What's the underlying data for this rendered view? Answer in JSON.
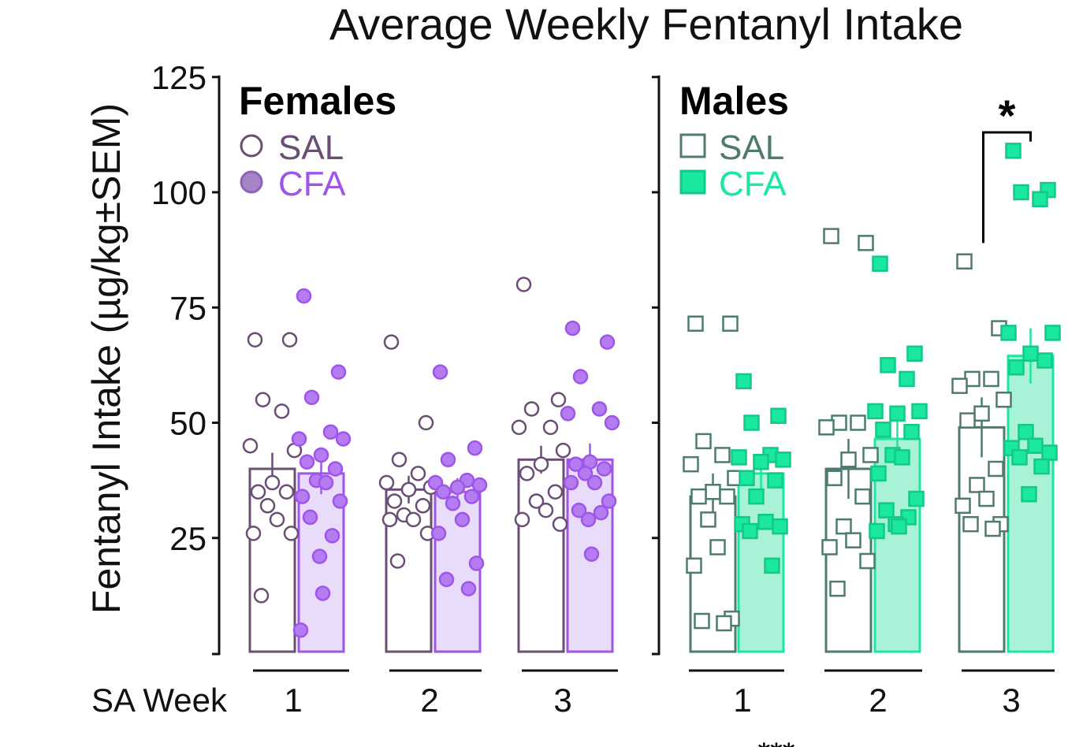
{
  "chart_data": {
    "type": "bar",
    "title": "Average Weekly Fentanyl Intake",
    "ylabel": "Fentanyl Intake (µg/kg±SEM)",
    "xlabel": "SA Week",
    "ylim": [
      0,
      125
    ],
    "yticks": [
      25,
      50,
      75,
      100,
      125
    ],
    "significance_symbol": "*",
    "footer_symbol": "***",
    "colors": {
      "female_sal": "#6b4e74",
      "female_cfa": "#9f55ea",
      "female_cfa_fill": "#e9dcfb",
      "male_sal": "#4f7a70",
      "male_cfa": "#1be8a0",
      "male_cfa_fill": "#a8f3d7",
      "axis": "#111111"
    },
    "panels": [
      {
        "name": "Females",
        "marker": "circle",
        "legend": [
          "SAL",
          "CFA"
        ],
        "categories": [
          "1",
          "2",
          "3"
        ],
        "series": [
          {
            "name": "SAL",
            "values": [
              40,
              35.5,
              42
            ],
            "sem": [
              3.5,
              3,
              3
            ],
            "points": [
              [
                68,
                68,
                55,
                52.5,
                45,
                44,
                37,
                35,
                35,
                32,
                29,
                26,
                26,
                12.5
              ],
              [
                67.5,
                50,
                42,
                39,
                37,
                36,
                35.5,
                33,
                32,
                30,
                29,
                29,
                26,
                20
              ],
              [
                80,
                55,
                53,
                49,
                49,
                44,
                41,
                39,
                35,
                33,
                31,
                29,
                28
              ]
            ]
          },
          {
            "name": "CFA",
            "values": [
              39,
              35,
              42
            ],
            "sem": [
              4.5,
              3,
              3.5
            ],
            "points": [
              [
                77.5,
                61,
                55.5,
                48,
                46.5,
                46.5,
                43,
                41.5,
                40,
                37.5,
                37,
                34,
                33,
                29.5,
                25.5,
                21,
                13,
                5
              ],
              [
                61,
                44.5,
                42,
                37.5,
                37,
                36.5,
                36,
                35,
                34,
                32.5,
                29,
                26,
                19.5,
                16,
                14
              ],
              [
                70.5,
                67.5,
                60,
                53,
                52,
                50,
                41.5,
                41,
                40,
                39,
                37,
                37,
                33,
                31,
                30.5,
                29,
                21.5
              ]
            ]
          }
        ]
      },
      {
        "name": "Males",
        "marker": "square",
        "legend": [
          "SAL",
          "CFA"
        ],
        "categories": [
          "1",
          "2",
          "3"
        ],
        "significance": {
          "category": "3",
          "label": "*"
        },
        "series": [
          {
            "name": "SAL",
            "values": [
              34,
              40,
              49
            ],
            "sem": [
              5,
              6.5,
              6.5
            ],
            "points": [
              [
                71.5,
                71.5,
                46,
                43,
                41,
                38,
                35,
                34,
                34,
                29,
                23,
                19,
                7.5,
                7,
                6.5
              ],
              [
                90.5,
                89,
                50,
                50,
                49,
                43,
                42,
                38,
                34,
                27.5,
                24.5,
                23,
                20,
                14
              ],
              [
                85,
                70.5,
                59.5,
                59.5,
                58,
                55,
                52,
                50.5,
                40,
                36.5,
                33.5,
                32,
                28,
                28,
                27
              ]
            ]
          },
          {
            "name": "CFA",
            "values": [
              39,
              46.5,
              64.5
            ],
            "sem": [
              3.5,
              5,
              6
            ],
            "points": [
              [
                59,
                51.5,
                50,
                43,
                42.5,
                42,
                41.5,
                38,
                37.5,
                34,
                28.5,
                28,
                27.5,
                26.5,
                19
              ],
              [
                84.5,
                65,
                62.5,
                59.5,
                52.5,
                52.5,
                52,
                48.5,
                48,
                43,
                42.5,
                39,
                33.5,
                31,
                29.5,
                28,
                27.5,
                26.5
              ],
              [
                109,
                100.5,
                100,
                98.5,
                69.5,
                69.5,
                65,
                62,
                63.5,
                48,
                45,
                44.5,
                43.5,
                42.5,
                40.5,
                34.5
              ]
            ]
          }
        ]
      }
    ]
  }
}
